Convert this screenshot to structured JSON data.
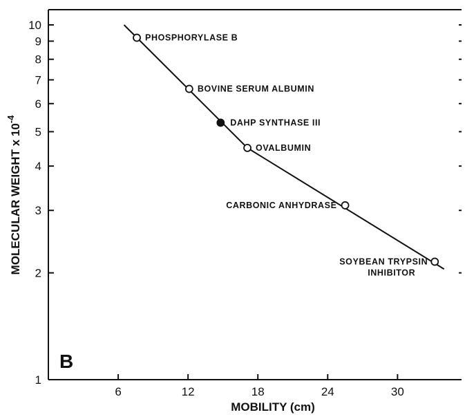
{
  "chart_data": {
    "type": "scatter",
    "panel_label": "B",
    "xlabel": "MOBILITY (cm)",
    "ylabel": "MOLECULAR WEIGHT x 10",
    "ylabel_exponent": "-4",
    "xlim": [
      0,
      35.5
    ],
    "ylim": [
      1,
      10
    ],
    "y_scale": "log",
    "x_ticks": [
      6,
      12,
      18,
      24,
      30
    ],
    "x_tick_labels": [
      "6",
      "12",
      "18",
      "24",
      "30"
    ],
    "y_ticks": [
      1,
      2,
      3,
      4,
      5,
      6,
      7,
      8,
      9,
      10
    ],
    "y_tick_labels": [
      "1",
      "2",
      "3",
      "4",
      "5",
      "6",
      "7",
      "8",
      "9",
      "10"
    ],
    "grid": false,
    "series": [
      {
        "marker": "open-circle",
        "points": [
          {
            "x": 7.6,
            "y": 9.2,
            "label": [
              "PHOSPHORYLASE B"
            ]
          },
          {
            "x": 12.1,
            "y": 6.6,
            "label": [
              "BOVINE SERUM ALBUMIN"
            ]
          },
          {
            "x": 17.1,
            "y": 4.5,
            "label": [
              "OVALBUMIN"
            ]
          },
          {
            "x": 25.5,
            "y": 3.1,
            "label": [
              "CARBONIC ANHYDRASE"
            ]
          },
          {
            "x": 33.2,
            "y": 2.15,
            "label": [
              "SOYBEAN TRYPSIN",
              "INHIBITOR"
            ]
          }
        ]
      },
      {
        "marker": "filled-circle",
        "points": [
          {
            "x": 14.8,
            "y": 5.3,
            "label": [
              "DAHP SYNTHASE III"
            ]
          }
        ]
      }
    ],
    "fit_line": [
      {
        "x": 6.5,
        "y": 10.0
      },
      {
        "x": 17.1,
        "y": 4.5
      },
      {
        "x": 34.0,
        "y": 2.05
      }
    ]
  }
}
